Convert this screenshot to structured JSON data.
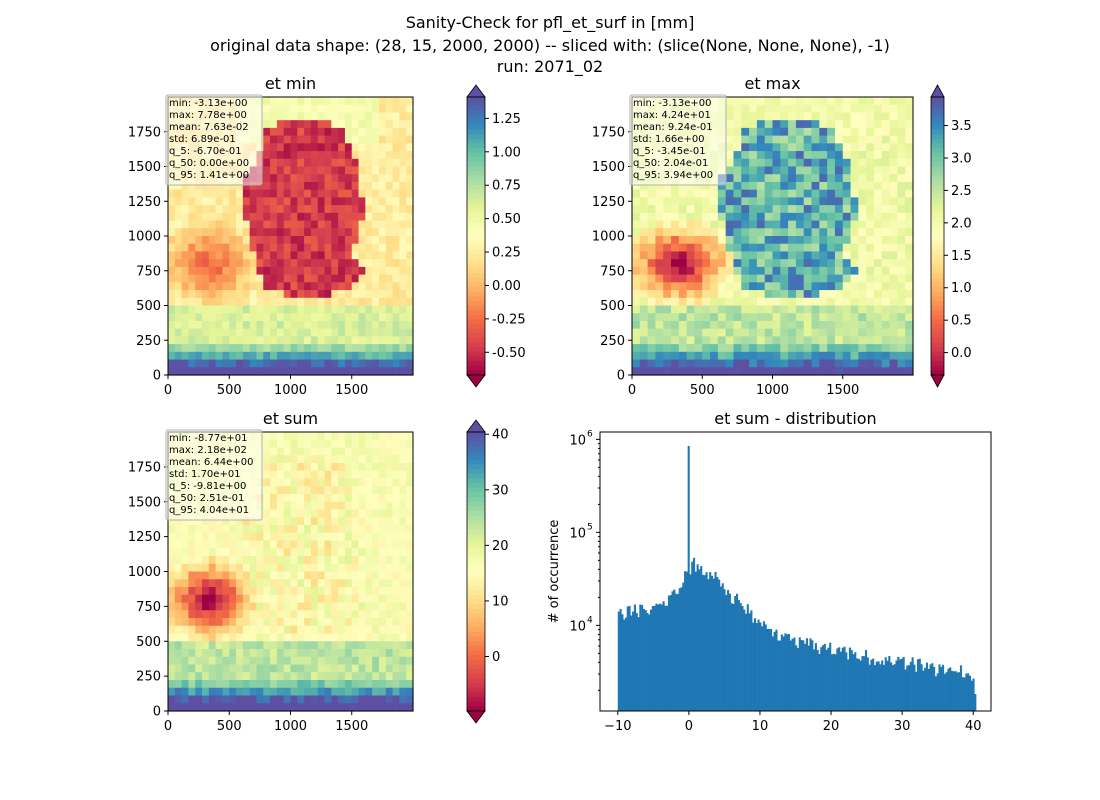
{
  "title": {
    "line1": "Sanity-Check for pfl_et_surf in [mm]",
    "line2": "original data shape: (28, 15, 2000, 2000) -- sliced with: (slice(None, None, None), -1)",
    "line3": "run: 2071_02"
  },
  "chart_data": [
    {
      "type": "heatmap",
      "title": "et min",
      "xticks": [
        "0",
        "500",
        "1000",
        "1500"
      ],
      "yticks": [
        "0",
        "250",
        "500",
        "750",
        "1000",
        "1250",
        "1500",
        "1750"
      ],
      "xlim": [
        0,
        2000
      ],
      "ylim": [
        0,
        2000
      ],
      "colormap": "Spectral",
      "colorbar": {
        "ticks": [
          "-0.50",
          "-0.25",
          "0.00",
          "0.25",
          "0.50",
          "0.75",
          "1.00",
          "1.25"
        ],
        "range": [
          -0.67,
          1.41
        ]
      },
      "stats": [
        "min: -3.13e+00",
        "max: 7.78e+00",
        "mean: 7.63e-02",
        "std: 6.89e-01",
        "q_5: -6.70e-01",
        "q_50: 0.00e+00",
        "q_95: 1.41e+00"
      ]
    },
    {
      "type": "heatmap",
      "title": "et max",
      "xticks": [
        "0",
        "500",
        "1000",
        "1500"
      ],
      "yticks": [
        "0",
        "250",
        "500",
        "750",
        "1000",
        "1250",
        "1500",
        "1750"
      ],
      "xlim": [
        0,
        2000
      ],
      "ylim": [
        0,
        2000
      ],
      "colormap": "Spectral",
      "colorbar": {
        "ticks": [
          "0.0",
          "0.5",
          "1.0",
          "1.5",
          "2.0",
          "2.5",
          "3.0",
          "3.5"
        ],
        "range": [
          -0.345,
          3.94
        ]
      },
      "stats": [
        "min: -3.13e+00",
        "max: 4.24e+01",
        "mean: 9.24e-01",
        "std: 1.66e+00",
        "q_5: -3.45e-01",
        "q_50: 2.04e-01",
        "q_95: 3.94e+00"
      ]
    },
    {
      "type": "heatmap",
      "title": "et sum",
      "xticks": [
        "0",
        "500",
        "1000",
        "1500"
      ],
      "yticks": [
        "0",
        "250",
        "500",
        "750",
        "1000",
        "1250",
        "1500",
        "1750"
      ],
      "xlim": [
        0,
        2000
      ],
      "ylim": [
        0,
        2000
      ],
      "colormap": "Spectral",
      "colorbar": {
        "ticks": [
          "0",
          "10",
          "20",
          "30",
          "40"
        ],
        "range": [
          -9.81,
          40.4
        ]
      },
      "stats": [
        "min: -8.77e+01",
        "max: 2.18e+02",
        "mean: 6.44e+00",
        "std: 1.70e+01",
        "q_5: -9.81e+00",
        "q_50: 2.51e-01",
        "q_95: 4.04e+01"
      ]
    },
    {
      "type": "bar",
      "title": "et sum - distribution",
      "ylabel": "# of occurrence",
      "xticks": [
        "−10",
        "0",
        "10",
        "20",
        "30",
        "40"
      ],
      "xlim": [
        -12.5,
        42.5
      ],
      "yscale": "log",
      "ylim": [
        1200,
        1200000
      ],
      "yticks": [
        "10",
        "10",
        "10"
      ],
      "ytick_exponents": [
        "4",
        "5",
        "6"
      ],
      "bar_color": "#1f77b4",
      "bin_range": [
        -10,
        40.4
      ],
      "bins": 200,
      "peak": {
        "x": 0,
        "count": 850000
      },
      "x": [
        -10,
        -8,
        -6,
        -4,
        -2,
        -1,
        -0.5,
        0.5,
        1,
        2,
        3,
        4,
        5,
        6,
        7,
        8,
        9,
        10,
        12,
        14,
        16,
        18,
        20,
        22,
        24,
        26,
        28,
        30,
        32,
        34,
        36,
        38,
        39,
        40,
        40.4
      ],
      "values": [
        13500,
        14000,
        15500,
        17000,
        22000,
        28000,
        33000,
        45000,
        46000,
        42000,
        36000,
        32000,
        25000,
        21000,
        18000,
        15000,
        13000,
        10000,
        8000,
        7000,
        6500,
        6000,
        5500,
        5000,
        4800,
        4500,
        4200,
        4000,
        3800,
        3500,
        3300,
        3200,
        3000,
        2500,
        1500
      ]
    }
  ]
}
